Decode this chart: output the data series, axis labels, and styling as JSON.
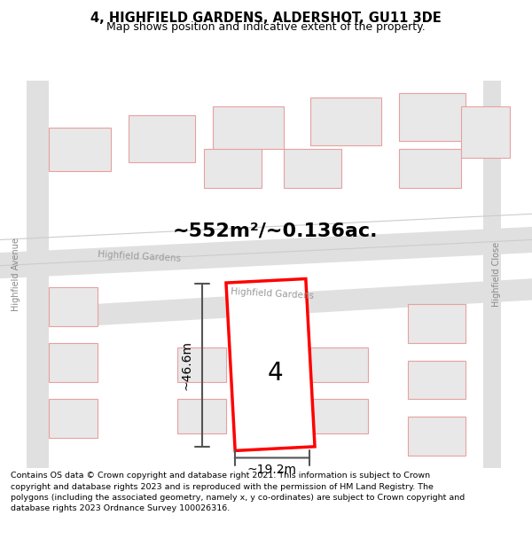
{
  "title": "4, HIGHFIELD GARDENS, ALDERSHOT, GU11 3DE",
  "subtitle": "Map shows position and indicative extent of the property.",
  "area_text": "~552m²/~0.136ac.",
  "dim_height": "~46.6m",
  "dim_width": "~19.2m",
  "property_number": "4",
  "copyright_text": "Contains OS data © Crown copyright and database right 2021. This information is subject to Crown copyright and database rights 2023 and is reproduced with the permission of HM Land Registry. The polygons (including the associated geometry, namely x, y co-ordinates) are subject to Crown copyright and database rights 2023 Ordnance Survey 100026316.",
  "bg_color": "#f5f5f5",
  "map_bg": "#ffffff",
  "road_color": "#e8e8e8",
  "building_outline_color": "#e8a0a0",
  "building_fill_color": "#e8e8e8",
  "highlight_color": "#ff0000",
  "highlight_fill": "#ffffff",
  "road_label_color": "#aaaaaa",
  "dim_color": "#555555",
  "title_color": "#000000",
  "copyright_bg": "#ffffff"
}
